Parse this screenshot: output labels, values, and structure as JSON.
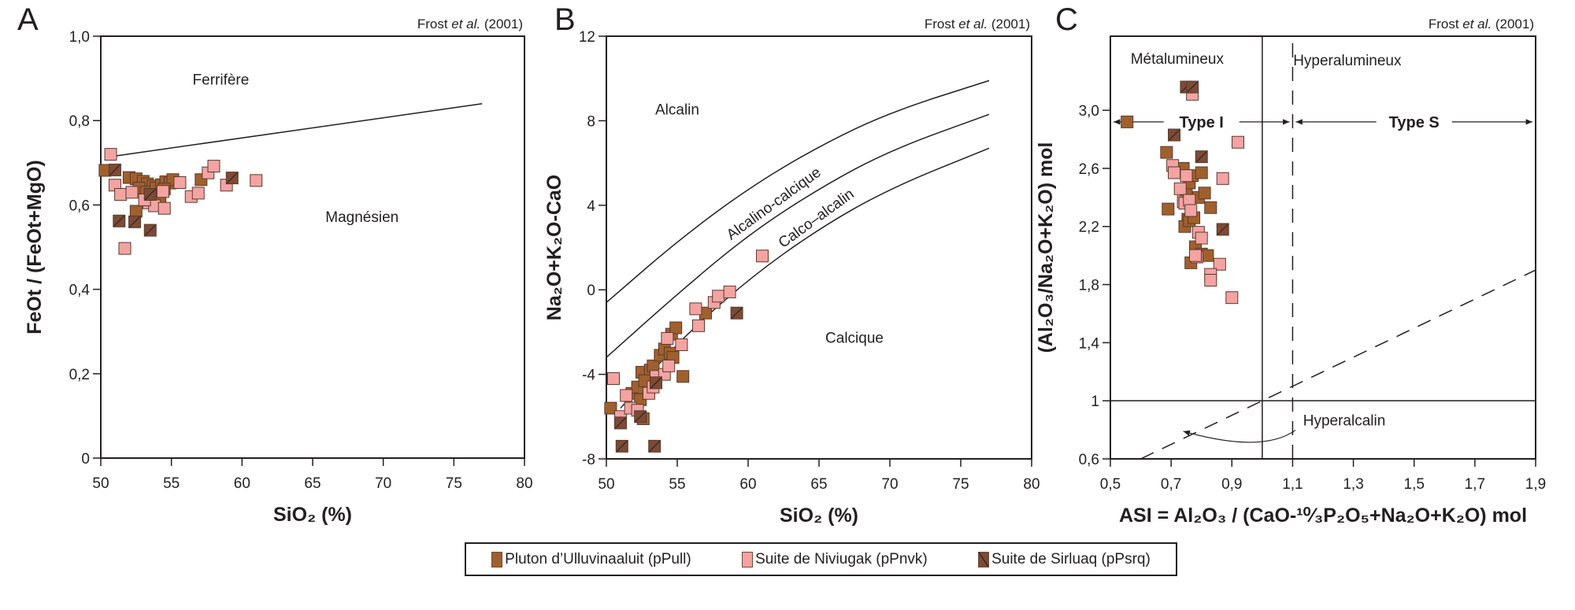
{
  "legend": {
    "items": [
      {
        "label": "Pluton d’Ulluvinaaluit (pPull)",
        "key": "pPull",
        "color": "#A0602E",
        "hatch": false
      },
      {
        "label": "Suite de Niviugak (pPnvk)",
        "key": "pPnvk",
        "color": "#F4A3A3",
        "hatch": false
      },
      {
        "label": "Suite de Sirluaq (pPsrq)",
        "key": "pPsrq",
        "color": "#7D4A35",
        "hatch": true
      }
    ]
  },
  "chart_data": [
    {
      "panel": "A",
      "type": "scatter",
      "reference": {
        "prefix": "Frost ",
        "italic": "et al.",
        "suffix": " (2001)"
      },
      "xlabel": "SiO₂ (%)",
      "ylabel": "FeOt / (FeOt+MgO)",
      "xlim": [
        50,
        80
      ],
      "ylim": [
        0,
        1.0
      ],
      "xticks": [
        50,
        55,
        60,
        65,
        70,
        75,
        80
      ],
      "xtick_labels": [
        "50",
        "55",
        "60",
        "65",
        "70",
        "75",
        "80"
      ],
      "yticks": [
        0,
        0.2,
        0.4,
        0.6,
        0.8,
        1.0
      ],
      "ytick_labels": [
        "0",
        "0,2",
        "0,4",
        "0,6",
        "0,8",
        "1,0"
      ],
      "regions": [
        {
          "label": "Ferrifère",
          "x": 58.5,
          "y": 0.885
        },
        {
          "label": "Magnésien",
          "x": 68.5,
          "y": 0.56
        }
      ],
      "boundaries": [
        {
          "name": "ferrifere-magnesien-line",
          "style": "solid",
          "points": [
            [
              51,
              0.716
            ],
            [
              77,
              0.84
            ]
          ]
        }
      ],
      "series": [
        {
          "key": "pPull",
          "points": [
            [
              50.3,
              0.682
            ],
            [
              52.0,
              0.665
            ],
            [
              52.5,
              0.662
            ],
            [
              53.0,
              0.656
            ],
            [
              53.3,
              0.65
            ],
            [
              53.7,
              0.645
            ],
            [
              52.7,
              0.64
            ],
            [
              53.2,
              0.63
            ],
            [
              53.5,
              0.625
            ],
            [
              53.9,
              0.64
            ],
            [
              54.3,
              0.648
            ],
            [
              54.6,
              0.655
            ],
            [
              54.9,
              0.652
            ],
            [
              55.1,
              0.66
            ],
            [
              54.5,
              0.638
            ],
            [
              53.9,
              0.62
            ],
            [
              54.2,
              0.605
            ],
            [
              52.5,
              0.585
            ],
            [
              57.1,
              0.66
            ]
          ]
        },
        {
          "key": "pPnvk",
          "points": [
            [
              50.7,
              0.72
            ],
            [
              51.0,
              0.647
            ],
            [
              51.4,
              0.625
            ],
            [
              52.2,
              0.63
            ],
            [
              53.4,
              0.605
            ],
            [
              53.8,
              0.598
            ],
            [
              54.5,
              0.592
            ],
            [
              54.4,
              0.632
            ],
            [
              55.6,
              0.653
            ],
            [
              56.4,
              0.62
            ],
            [
              56.9,
              0.628
            ],
            [
              57.6,
              0.676
            ],
            [
              58.0,
              0.692
            ],
            [
              58.9,
              0.647
            ],
            [
              61.0,
              0.658
            ],
            [
              51.7,
              0.497
            ],
            [
              53.1,
              0.612
            ]
          ]
        },
        {
          "key": "pPsrq",
          "points": [
            [
              51.0,
              0.683
            ],
            [
              51.3,
              0.562
            ],
            [
              52.4,
              0.56
            ],
            [
              53.5,
              0.54
            ],
            [
              53.5,
              0.625
            ],
            [
              59.3,
              0.664
            ]
          ]
        }
      ]
    },
    {
      "panel": "B",
      "type": "scatter",
      "reference": {
        "prefix": "Frost ",
        "italic": "et al.",
        "suffix": " (2001)"
      },
      "xlabel": "SiO₂ (%)",
      "ylabel": "Na₂O+K₂O-CaO",
      "xlim": [
        50,
        80
      ],
      "ylim": [
        -8,
        12
      ],
      "xticks": [
        50,
        55,
        60,
        65,
        70,
        75,
        80
      ],
      "xtick_labels": [
        "50",
        "55",
        "60",
        "65",
        "70",
        "75",
        "80"
      ],
      "yticks": [
        -8,
        -4,
        0,
        4,
        8,
        12
      ],
      "ytick_labels": [
        "-8",
        "-4",
        "0",
        "4",
        "8",
        "12"
      ],
      "regions": [
        {
          "label": "Alcalin",
          "x": 55.0,
          "y": 8.3,
          "rotate": 0
        },
        {
          "label": "Alcalino-calcique",
          "x": 62.0,
          "y": 3.9,
          "rotate": -36
        },
        {
          "label": "Calco–alcalin",
          "x": 65.0,
          "y": 3.2,
          "rotate": -36
        },
        {
          "label": "Calcique",
          "x": 67.5,
          "y": -2.5,
          "rotate": 0
        }
      ],
      "boundaries": [
        {
          "name": "alcalin-alcalino-calcique",
          "style": "solid",
          "points": [
            [
              50,
              -0.6
            ],
            [
              55,
              2.3
            ],
            [
              60,
              4.8
            ],
            [
              65,
              6.8
            ],
            [
              70,
              8.4
            ],
            [
              77,
              9.9
            ]
          ]
        },
        {
          "name": "alcalino-calcique-calco-alcalin",
          "style": "solid",
          "points": [
            [
              50,
              -3.2
            ],
            [
              55,
              -0.2
            ],
            [
              60,
              2.6
            ],
            [
              65,
              4.8
            ],
            [
              70,
              6.6
            ],
            [
              77,
              8.3
            ]
          ]
        },
        {
          "name": "calco-alcalin-calcique",
          "style": "solid",
          "points": [
            [
              51,
              -5.6
            ],
            [
              55,
              -2.5
            ],
            [
              60,
              0.5
            ],
            [
              65,
              2.9
            ],
            [
              70,
              4.8
            ],
            [
              77,
              6.7
            ]
          ]
        }
      ],
      "series": [
        {
          "key": "pPull",
          "points": [
            [
              50.3,
              -5.6
            ],
            [
              51.8,
              -4.9
            ],
            [
              52.2,
              -4.6
            ],
            [
              52.5,
              -3.9
            ],
            [
              53.1,
              -3.8
            ],
            [
              53.3,
              -3.6
            ],
            [
              52.7,
              -4.3
            ],
            [
              52.4,
              -5.2
            ],
            [
              53.8,
              -3.1
            ],
            [
              54.1,
              -2.8
            ],
            [
              54.5,
              -3.0
            ],
            [
              54.7,
              -3.2
            ],
            [
              54.6,
              -2.1
            ],
            [
              54.9,
              -1.8
            ],
            [
              55.4,
              -4.1
            ],
            [
              52.6,
              -6.1
            ],
            [
              57.0,
              -1.1
            ]
          ]
        },
        {
          "key": "pPnvk",
          "points": [
            [
              50.5,
              -4.2
            ],
            [
              51.0,
              -6.0
            ],
            [
              51.4,
              -5.0
            ],
            [
              51.7,
              -5.6
            ],
            [
              52.2,
              -5.7
            ],
            [
              53.0,
              -4.9
            ],
            [
              53.3,
              -4.6
            ],
            [
              53.5,
              -4.1
            ],
            [
              54.1,
              -4.0
            ],
            [
              54.4,
              -3.6
            ],
            [
              54.3,
              -2.3
            ],
            [
              55.3,
              -2.6
            ],
            [
              56.3,
              -0.9
            ],
            [
              56.5,
              -1.7
            ],
            [
              57.6,
              -0.6
            ],
            [
              57.9,
              -0.3
            ],
            [
              58.7,
              -0.1
            ],
            [
              61.0,
              1.6
            ]
          ]
        },
        {
          "key": "pPsrq",
          "points": [
            [
              51.0,
              -6.3
            ],
            [
              51.1,
              -7.4
            ],
            [
              53.4,
              -7.4
            ],
            [
              52.4,
              -6.0
            ],
            [
              53.5,
              -4.4
            ],
            [
              59.2,
              -1.1
            ]
          ]
        }
      ]
    },
    {
      "panel": "C",
      "type": "scatter",
      "reference": {
        "prefix": "Frost ",
        "italic": "et al.",
        "suffix": " (2001)"
      },
      "xlabel": "ASI = Al₂O₃ / (CaO-¹⁰⁄₃P₂O₅+Na₂O+K₂O) mol",
      "ylabel": "(Al₂O₃/Na₂O+K₂O) mol",
      "xlim": [
        0.5,
        1.9
      ],
      "ylim": [
        0.6,
        3.51
      ],
      "xticks": [
        0.5,
        0.7,
        0.9,
        1.1,
        1.3,
        1.5,
        1.7,
        1.9
      ],
      "xtick_labels": [
        "0,5",
        "0,7",
        "0,9",
        "1,1",
        "1,3",
        "1,5",
        "1,7",
        "1,9"
      ],
      "yticks": [
        0.6,
        1.0,
        1.4,
        1.8,
        2.2,
        2.6,
        3.0
      ],
      "ytick_labels": [
        "0,6",
        "1",
        "1,4",
        "1,8",
        "2,2",
        "2,6",
        "3,0"
      ],
      "regions": [
        {
          "label": "Métalumineux",
          "x": 0.72,
          "y": 3.32
        },
        {
          "label": "Hyperalumineux",
          "x": 1.28,
          "y": 3.31
        },
        {
          "label": "Hyperalcalin",
          "x": 1.27,
          "y": 0.83
        }
      ],
      "type_labels": [
        {
          "label": "Type I",
          "x_from": 0.5,
          "x_to": 1.1,
          "y": 2.92
        },
        {
          "label": "Type S",
          "x_from": 1.1,
          "x_to": 1.9,
          "y": 2.92
        }
      ],
      "boundaries": [
        {
          "name": "asi-1-vertical",
          "style": "solid",
          "points": [
            [
              1.0,
              0.6
            ],
            [
              1.0,
              3.51
            ]
          ]
        },
        {
          "name": "asi-1.1-vertical",
          "style": "dashed",
          "points": [
            [
              1.1,
              0.6
            ],
            [
              1.1,
              3.51
            ]
          ]
        },
        {
          "name": "anka-1-horizontal",
          "style": "solid",
          "points": [
            [
              0.5,
              1.0
            ],
            [
              1.9,
              1.0
            ]
          ]
        },
        {
          "name": "one-to-one-diagonal",
          "style": "dashed",
          "points": [
            [
              0.6,
              0.6
            ],
            [
              1.9,
              1.9
            ]
          ]
        }
      ],
      "series": [
        {
          "key": "pPull",
          "points": [
            [
              0.555,
              2.92
            ],
            [
              0.685,
              2.71
            ],
            [
              0.69,
              2.32
            ],
            [
              0.735,
              2.59
            ],
            [
              0.75,
              2.45
            ],
            [
              0.755,
              2.25
            ],
            [
              0.76,
              2.5
            ],
            [
              0.77,
              2.55
            ],
            [
              0.79,
              2.4
            ],
            [
              0.8,
              2.57
            ],
            [
              0.81,
              2.43
            ],
            [
              0.83,
              2.33
            ],
            [
              0.745,
              2.2
            ],
            [
              0.76,
              2.24
            ],
            [
              0.775,
              2.26
            ],
            [
              0.78,
              2.06
            ],
            [
              0.8,
              2.01
            ],
            [
              0.82,
              2.0
            ],
            [
              0.765,
              1.95
            ],
            [
              0.74,
              2.6
            ]
          ]
        },
        {
          "key": "pPnvk",
          "points": [
            [
              0.77,
              3.11
            ],
            [
              0.705,
              2.62
            ],
            [
              0.71,
              2.57
            ],
            [
              0.73,
              2.46
            ],
            [
              0.75,
              2.55
            ],
            [
              0.74,
              2.37
            ],
            [
              0.745,
              2.36
            ],
            [
              0.76,
              2.38
            ],
            [
              0.765,
              2.31
            ],
            [
              0.79,
              2.16
            ],
            [
              0.8,
              2.12
            ],
            [
              0.785,
              1.99
            ],
            [
              0.87,
              2.53
            ],
            [
              0.92,
              2.78
            ],
            [
              0.86,
              1.94
            ],
            [
              0.83,
              1.87
            ],
            [
              0.83,
              1.83
            ],
            [
              0.9,
              1.71
            ],
            [
              0.78,
              2.0
            ]
          ]
        },
        {
          "key": "pPsrq",
          "points": [
            [
              0.75,
              3.16
            ],
            [
              0.77,
              3.16
            ],
            [
              0.71,
              2.83
            ],
            [
              0.8,
              2.68
            ],
            [
              0.87,
              2.18
            ]
          ]
        }
      ]
    }
  ]
}
